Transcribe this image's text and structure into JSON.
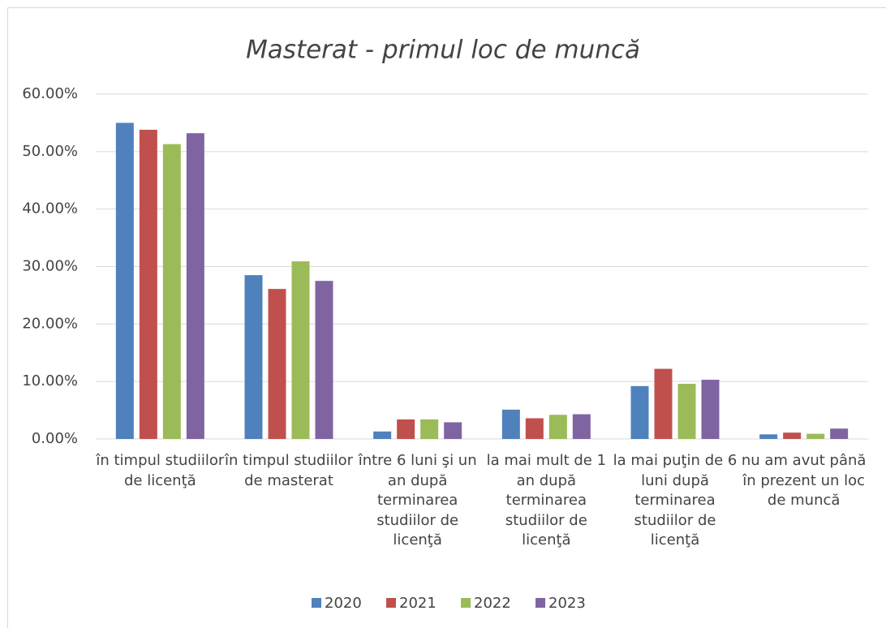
{
  "chart_data": {
    "type": "bar",
    "title": "Masterat - primul loc de muncă",
    "categories": [
      "în timpul studiilor de licenţă",
      "în timpul studiilor de masterat",
      "între 6 luni şi un an după terminarea studiilor de licenţă",
      "la mai mult de 1 an după terminarea studiilor de licenţă",
      "la mai puţin de 6 luni după terminarea studiilor de licenţă",
      "nu am avut până în prezent un loc de muncă"
    ],
    "series": [
      {
        "name": "2020",
        "color": "#4f81bd",
        "values": [
          55.0,
          28.5,
          1.3,
          5.1,
          9.2,
          0.8
        ]
      },
      {
        "name": "2021",
        "color": "#c0504d",
        "values": [
          53.8,
          26.1,
          3.4,
          3.6,
          12.2,
          1.1
        ]
      },
      {
        "name": "2022",
        "color": "#9bbb59",
        "values": [
          51.3,
          30.9,
          3.4,
          4.2,
          9.6,
          0.9
        ]
      },
      {
        "name": "2023",
        "color": "#8064a2",
        "values": [
          53.2,
          27.5,
          2.9,
          4.3,
          10.3,
          1.8
        ]
      }
    ],
    "ylim": [
      0,
      60
    ],
    "yticks": [
      {
        "value": 0,
        "label": "0.00%"
      },
      {
        "value": 10,
        "label": "10.00%"
      },
      {
        "value": 20,
        "label": "20.00%"
      },
      {
        "value": 30,
        "label": "30.00%"
      },
      {
        "value": 40,
        "label": "40.00%"
      },
      {
        "value": 50,
        "label": "50.00%"
      },
      {
        "value": 60,
        "label": "60.00%"
      }
    ],
    "grid": true,
    "legend": "bottom"
  }
}
